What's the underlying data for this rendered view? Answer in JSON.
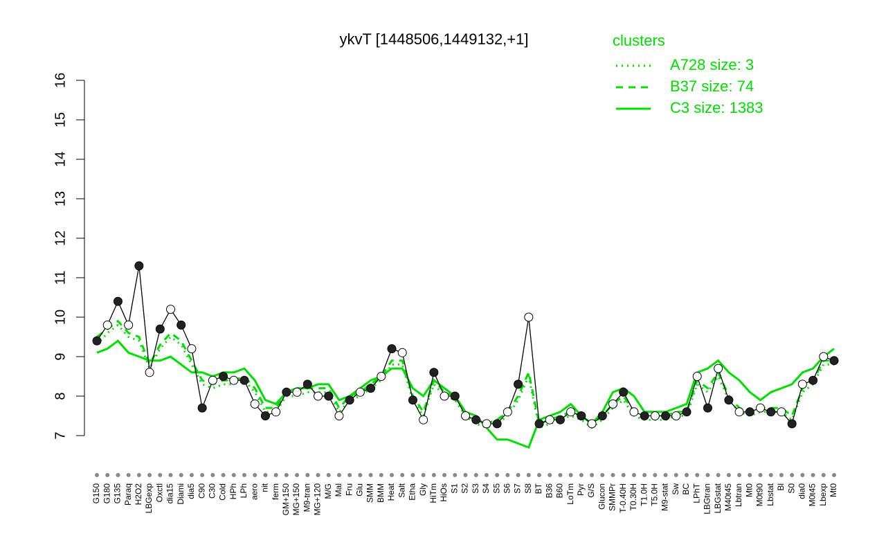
{
  "chart_data": {
    "type": "line",
    "title": "ykvT [1448506,1449132,+1]",
    "legend_title": "clusters",
    "legend_color": "#00dd00",
    "ylim": [
      7,
      16
    ],
    "yticks": [
      7,
      8,
      9,
      10,
      11,
      12,
      13,
      14,
      15,
      16
    ],
    "categories": [
      "G150",
      "G180",
      "G135",
      "Paraq",
      "H2O2",
      "LBGexp",
      "Oxctl",
      "dia15",
      "Diami",
      "dia5",
      "C90",
      "C30",
      "Cold",
      "HPh",
      "LPh",
      "aero",
      "nit",
      "ferm",
      "GM+150",
      "MG+150",
      "M9-tran",
      "MG+120",
      "M/G",
      "Mal",
      "Fru",
      "Glu",
      "SMM",
      "BMM",
      "Heat",
      "Salt",
      "Etha",
      "Gly",
      "HiTm",
      "HiOs",
      "S1",
      "S2",
      "S3",
      "S4",
      "S5",
      "S6",
      "S7",
      "S8",
      "BT",
      "B36",
      "B60",
      "LoTm",
      "Pyr",
      "G/S",
      "Glucon",
      "SMMPr",
      "T-0.40H",
      "T0.30H",
      "T1.0H",
      "T5.0H",
      "M9-stat",
      "Sw",
      "BC",
      "LPhT",
      "LBGtran",
      "LBGstat",
      "M40t45",
      "Lbtran",
      "Mt0",
      "M0t90",
      "Lbstat",
      "Bl",
      "S0",
      "dia0",
      "M0t45",
      "Lbexp",
      "Mt0"
    ],
    "values": [
      9.4,
      9.8,
      10.4,
      9.8,
      11.3,
      8.6,
      9.7,
      10.2,
      9.8,
      9.2,
      7.7,
      8.4,
      8.5,
      8.4,
      8.4,
      7.8,
      7.5,
      7.6,
      8.1,
      8.1,
      8.3,
      8.0,
      8.0,
      7.5,
      7.9,
      8.1,
      8.2,
      8.5,
      9.2,
      9.1,
      7.9,
      7.4,
      8.6,
      8.0,
      8.0,
      7.5,
      7.4,
      7.3,
      7.3,
      7.6,
      8.3,
      10.0,
      7.3,
      7.4,
      7.4,
      7.6,
      7.5,
      7.3,
      7.5,
      7.8,
      8.1,
      7.6,
      7.5,
      7.5,
      7.5,
      7.5,
      7.6,
      8.5,
      7.7,
      8.7,
      7.9,
      7.6,
      7.6,
      7.7,
      7.6,
      7.6,
      7.3,
      8.3,
      8.4,
      9.0,
      8.9
    ],
    "series": [
      {
        "name": "A728 size: 3",
        "color": "#00dd00",
        "dash": "2,6",
        "values": [
          9.3,
          9.6,
          9.8,
          9.5,
          9.4,
          8.7,
          9.2,
          9.5,
          9.3,
          8.8,
          8.3,
          8.2,
          8.3,
          8.3,
          8.4,
          8.1,
          7.6,
          7.6,
          8.0,
          8.0,
          8.1,
          8.1,
          8.1,
          7.6,
          7.9,
          8.0,
          8.2,
          8.4,
          8.8,
          8.8,
          7.9,
          7.5,
          8.3,
          8.0,
          7.9,
          7.5,
          7.3,
          7.2,
          7.3,
          7.5,
          7.9,
          8.5,
          7.2,
          7.3,
          7.4,
          7.5,
          7.4,
          7.2,
          7.4,
          7.7,
          7.9,
          7.5,
          7.4,
          7.4,
          7.4,
          7.5,
          7.5,
          8.3,
          8.1,
          8.5,
          7.9,
          7.6,
          7.5,
          7.6,
          7.6,
          7.6,
          7.4,
          8.1,
          8.3,
          8.8,
          8.8
        ]
      },
      {
        "name": "B37 size: 74",
        "color": "#00dd00",
        "dash": "10,8",
        "values": [
          9.5,
          9.7,
          9.9,
          9.6,
          9.5,
          8.8,
          9.3,
          9.6,
          9.4,
          8.9,
          8.4,
          8.3,
          8.4,
          8.4,
          8.5,
          8.2,
          7.7,
          7.7,
          8.1,
          8.1,
          8.2,
          8.2,
          8.2,
          7.7,
          8.0,
          8.1,
          8.3,
          8.5,
          8.9,
          8.9,
          8.0,
          7.6,
          8.4,
          8.1,
          8.0,
          7.6,
          7.4,
          7.3,
          7.4,
          7.6,
          8.0,
          8.6,
          7.3,
          7.4,
          7.5,
          7.6,
          7.5,
          7.3,
          7.5,
          7.8,
          8.0,
          7.6,
          7.5,
          7.5,
          7.5,
          7.6,
          7.6,
          8.4,
          8.2,
          8.6,
          8.0,
          7.7,
          7.6,
          7.7,
          7.7,
          7.7,
          7.5,
          8.2,
          8.4,
          8.9,
          8.9
        ]
      },
      {
        "name": "C3 size: 1383",
        "color": "#00dd00",
        "dash": "none",
        "values": [
          9.1,
          9.2,
          9.4,
          9.1,
          9.0,
          8.9,
          8.9,
          9.0,
          8.8,
          8.6,
          8.6,
          8.5,
          8.6,
          8.6,
          8.7,
          8.4,
          7.9,
          7.8,
          8.1,
          8.2,
          8.2,
          8.3,
          8.3,
          7.9,
          8.0,
          8.2,
          8.4,
          8.5,
          8.7,
          8.7,
          8.2,
          8.0,
          8.4,
          8.2,
          8.0,
          7.6,
          7.5,
          7.2,
          6.9,
          6.9,
          6.8,
          6.7,
          7.4,
          7.5,
          7.6,
          7.8,
          7.5,
          7.3,
          7.6,
          8.1,
          8.2,
          8.0,
          7.6,
          7.6,
          7.6,
          7.7,
          7.8,
          8.6,
          8.7,
          8.9,
          8.6,
          8.4,
          8.1,
          7.9,
          8.1,
          8.2,
          8.3,
          8.6,
          8.7,
          9.0,
          9.2
        ]
      }
    ]
  }
}
